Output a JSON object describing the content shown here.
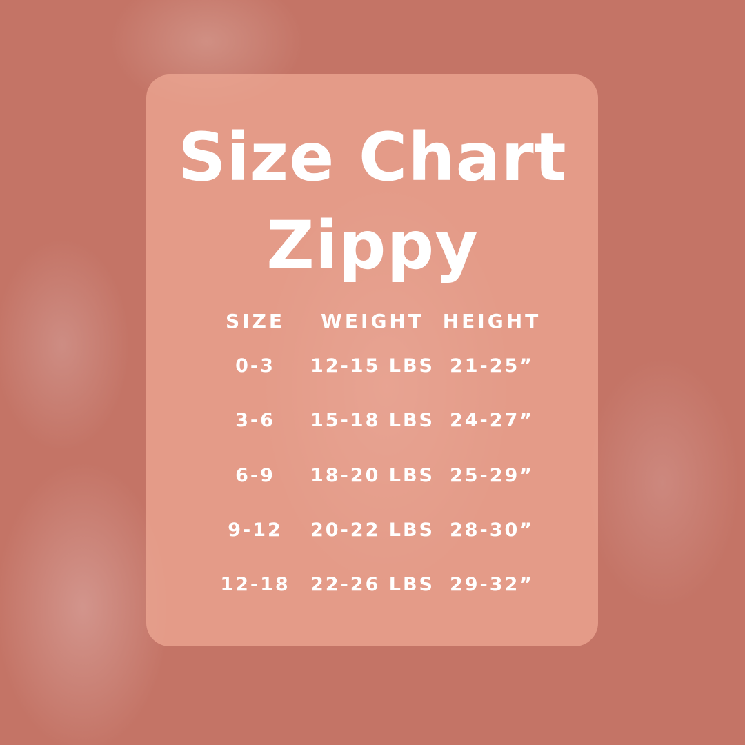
{
  "title_line1": "Size Chart",
  "title_line2": "Zippy",
  "table": {
    "headers": [
      "SIZE",
      "WEIGHT",
      "HEIGHT"
    ],
    "rows": [
      [
        "0-3",
        "12-15 LBS",
        "21-25”"
      ],
      [
        "3-6",
        "15-18 LBS",
        "24-27”"
      ],
      [
        "6-9",
        "18-20 LBS",
        "25-29”"
      ],
      [
        "9-12",
        "20-22 LBS",
        "28-30”"
      ],
      [
        "12-18",
        "22-26 LBS",
        "29-32”"
      ]
    ]
  },
  "colors": {
    "background": "#c47466",
    "panel": "#f0aa96",
    "text": "#ffffff"
  }
}
